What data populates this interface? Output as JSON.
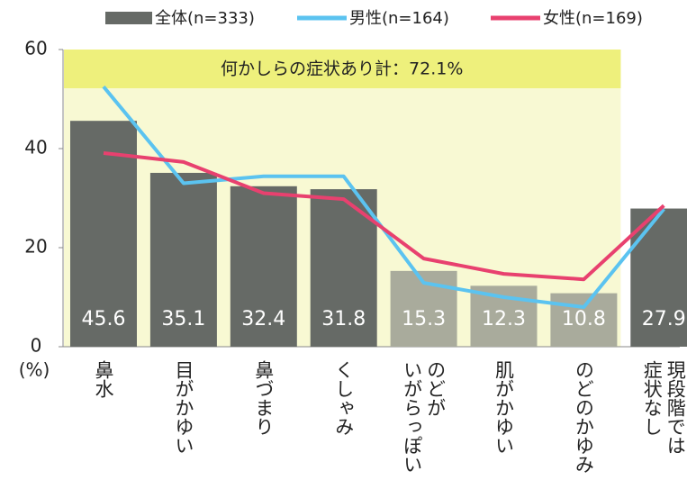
{
  "chart_data": {
    "type": "bar",
    "legend": [
      "全体(n=333)"
    ],
    "annotation": "何かしらの症状あり計：72.1%",
    "y_unit": "(%)",
    "categories": [
      "鼻水",
      "目がかゆい",
      "鼻づまり",
      "くしゃみ",
      "のどが\nいがらっぽい",
      "肌がかゆい",
      "のどのかゆみ",
      "現段階では\n症状なし"
    ],
    "values": [
      45.6,
      35.1,
      32.4,
      31.8,
      15.3,
      12.3,
      10.8,
      27.9
    ],
    "colors": [
      "#666a66",
      "#666a66",
      "#666a66",
      "#666a66",
      "#a9ab9c",
      "#a9ab9c",
      "#a9ab9c",
      "#666a66"
    ],
    "series": [
      {
        "name": "男性(n=164)",
        "color": "#5bc3f0",
        "values": [
          52.5,
          33,
          34.4,
          34.4,
          12.9,
          10,
          8,
          27.8
        ]
      },
      {
        "name": "女性(n=169)",
        "color": "#e8416f",
        "values": [
          39.1,
          37.3,
          31,
          29.8,
          17.8,
          14.7,
          13.6,
          28.5
        ]
      }
    ],
    "ylim": [
      0,
      60
    ],
    "yticks": [
      0,
      20,
      40,
      60
    ]
  }
}
